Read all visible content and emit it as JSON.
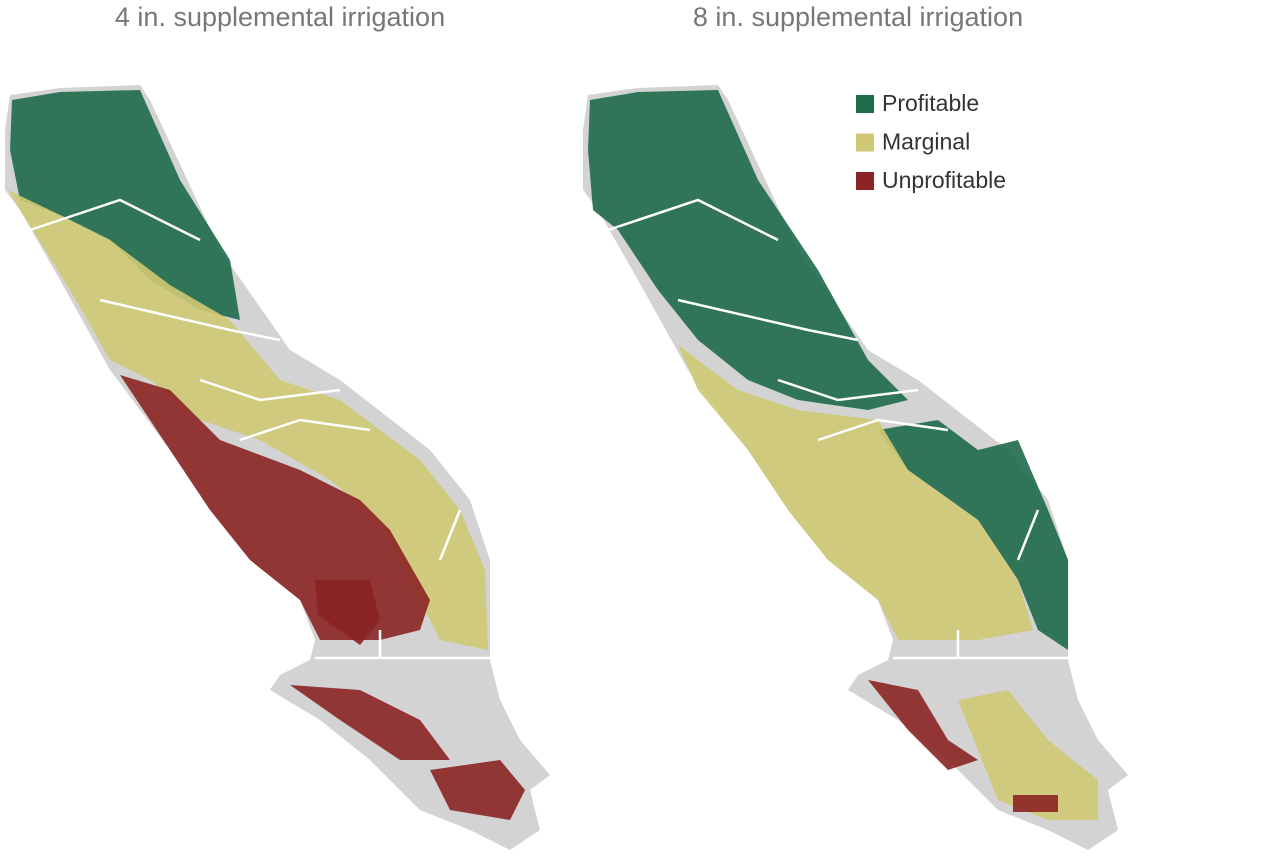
{
  "maps": [
    {
      "title": "4 in. supplemental irrigation"
    },
    {
      "title": "8 in. supplemental irrigation"
    }
  ],
  "legend": [
    {
      "label": "Profitable",
      "color": "#1e6a4a"
    },
    {
      "label": "Marginal",
      "color": "#cfc975"
    },
    {
      "label": "Unprofitable",
      "color": "#8b2424"
    }
  ]
}
